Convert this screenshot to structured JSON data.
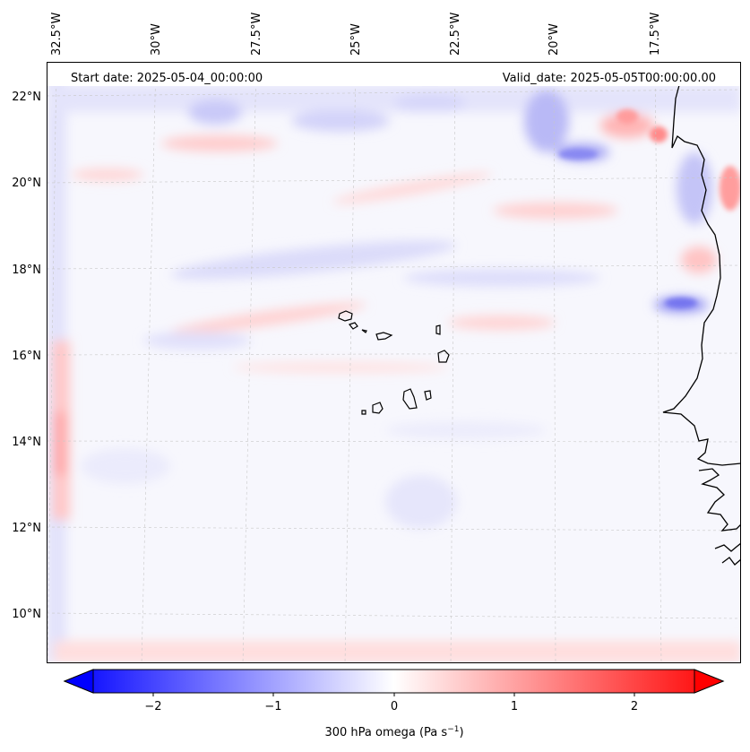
{
  "map": {
    "start_label": "Start date: 2025-05-04_00:00:00",
    "valid_label": "Valid_date: 2025-05-05T00:00:00.00",
    "lon_ticks": [
      "32.5°W",
      "30°W",
      "27.5°W",
      "25°W",
      "22.5°W",
      "20°W",
      "17.5°W"
    ],
    "lat_ticks": [
      "22°N",
      "20°N",
      "18°N",
      "16°N",
      "14°N",
      "12°N",
      "10°N"
    ],
    "variable": "300 hPa omega",
    "units": "Pa s",
    "units_exponent": "−1"
  },
  "colorbar": {
    "ticks": [
      "−2",
      "−1",
      "0",
      "1",
      "2"
    ],
    "colormap": "bwr",
    "low_color": "#0000ff",
    "mid_color": "#ffffff",
    "high_color": "#ff0000"
  }
}
